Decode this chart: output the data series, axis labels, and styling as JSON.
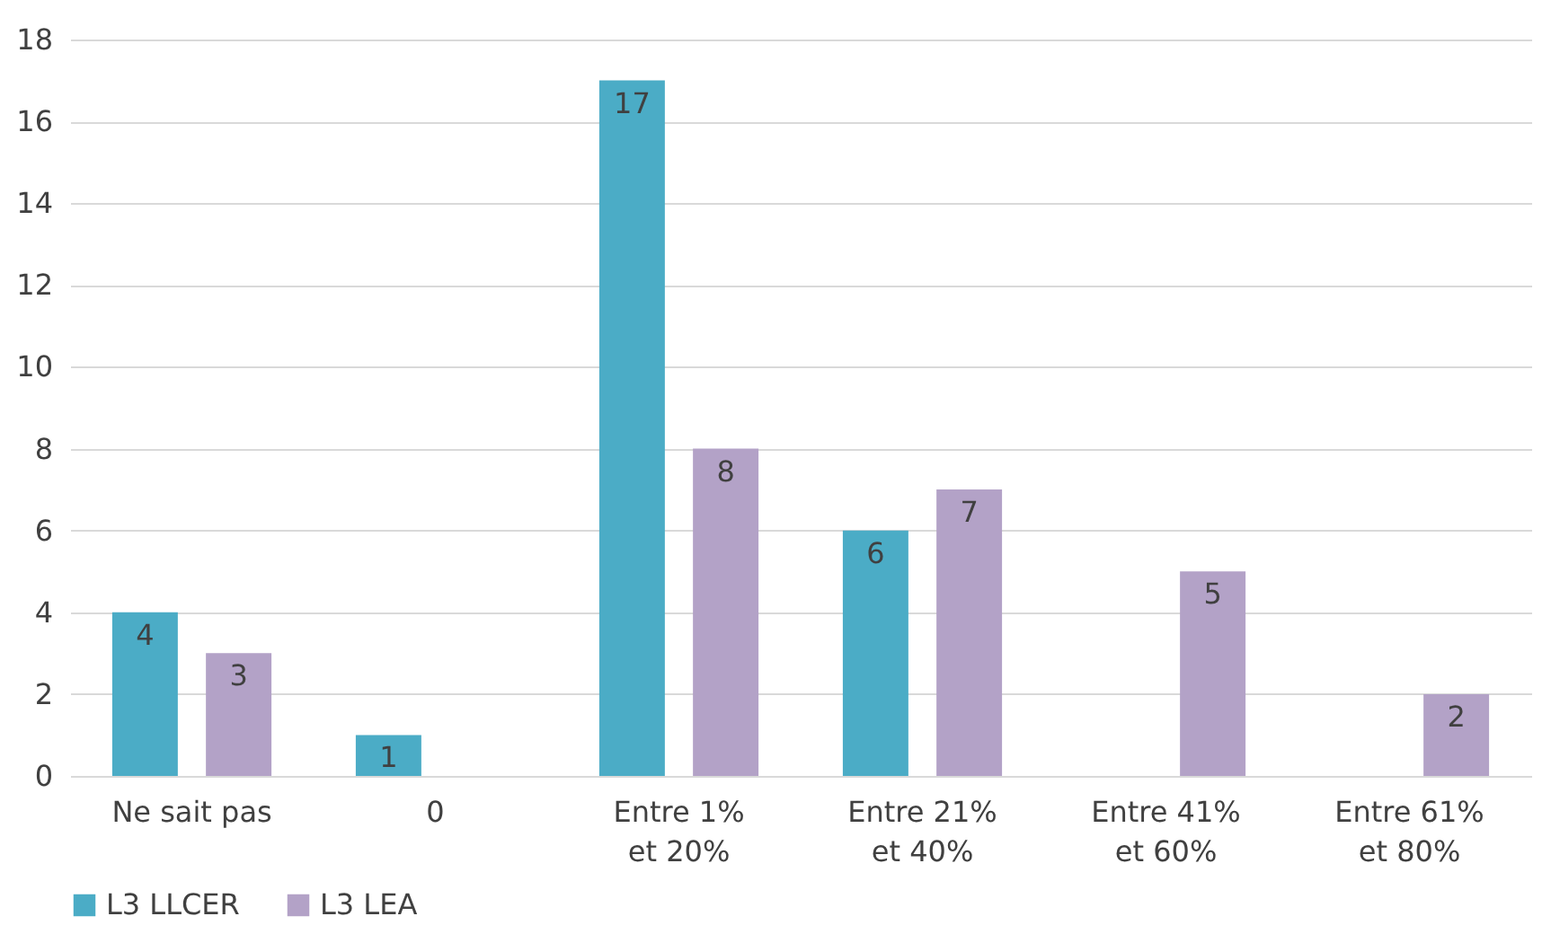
{
  "chart_data": {
    "type": "bar",
    "categories": [
      "Ne sait pas",
      "0",
      "Entre 1%\net 20%",
      "Entre 21%\net 40%",
      "Entre 41%\net 60%",
      "Entre 61%\net 80%"
    ],
    "series": [
      {
        "name": "L3 LLCER",
        "color": "#4bacc6",
        "values": [
          4,
          1,
          17,
          6,
          null,
          null
        ]
      },
      {
        "name": "L3 LEA",
        "color": "#b3a2c7",
        "values": [
          3,
          null,
          8,
          7,
          5,
          2
        ]
      }
    ],
    "ylim": [
      0,
      18
    ],
    "yticks": [
      0,
      2,
      4,
      6,
      8,
      10,
      12,
      14,
      16,
      18
    ],
    "grid": "y",
    "legend": "bottom",
    "data_labels": true
  }
}
